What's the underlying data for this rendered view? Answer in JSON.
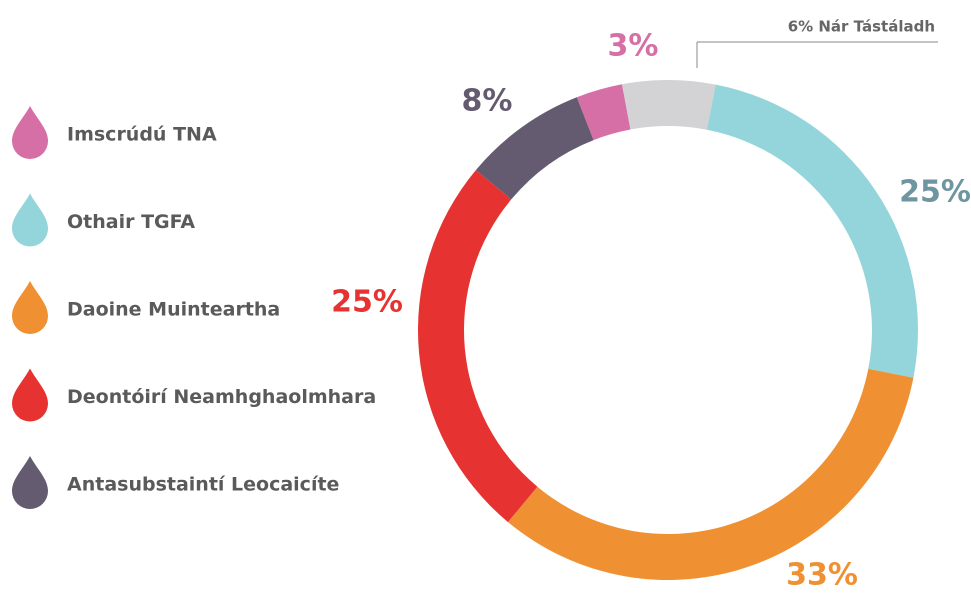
{
  "chart_data": {
    "type": "donut",
    "categories": [
      "Imscrúdú TNA",
      null,
      "Othair TGFA",
      "Daoine Muinteartha",
      "Deontóirí Neamhghaolmhara",
      "Antasubstaintí Leocaicíte"
    ],
    "values": [
      3,
      6,
      25,
      33,
      25,
      8
    ],
    "value_labels": [
      "3%",
      "6% Nár Tástáladh",
      "25%",
      "33%",
      "25%",
      "8%"
    ],
    "colors": [
      "#d66fa6",
      "#d3d3d5",
      "#93d5da",
      "#ef9133",
      "#e63331",
      "#655b70"
    ],
    "label_colors": [
      "#d66fa6",
      "#666666",
      "#6f95a0",
      "#ef9133",
      "#e63331",
      "#655b70"
    ]
  }
}
